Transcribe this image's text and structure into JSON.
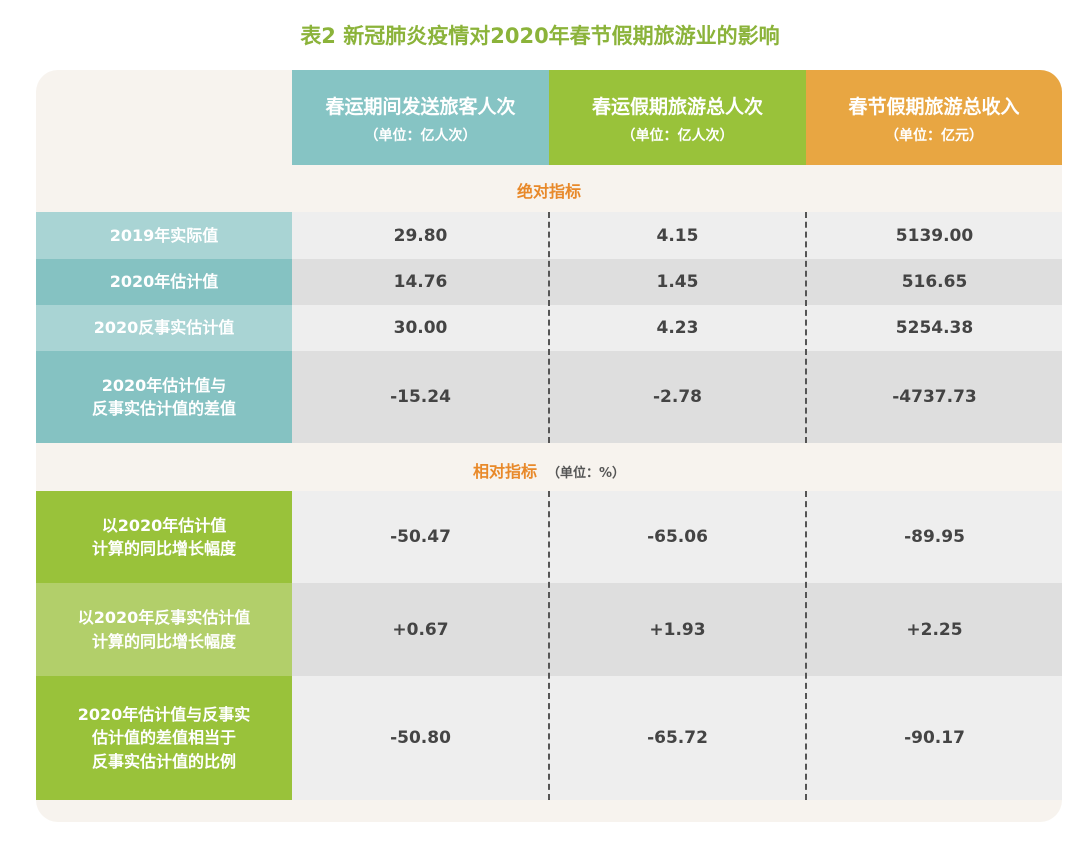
{
  "title": "表2  新冠肺炎疫情对2020年春节假期旅游业的影响",
  "columns": [
    {
      "name": "春运期间发送旅客人次",
      "unit": "（单位：亿人次）",
      "color": "#86c4c4"
    },
    {
      "name": "春运假期旅游总人次",
      "unit": "（单位：亿人次）",
      "color": "#99c23a"
    },
    {
      "name": "春节假期旅游总收入",
      "unit": "（单位：亿元）",
      "color": "#e8a642"
    }
  ],
  "sections": {
    "absolute": {
      "title": "绝对指标"
    },
    "relative": {
      "title": "相对指标",
      "unit": "（单位：%）"
    }
  },
  "rows": [
    {
      "label": "2019年实际值",
      "values": [
        "29.80",
        "4.15",
        "5139.00"
      ]
    },
    {
      "label": "2020年估计值",
      "values": [
        "14.76",
        "1.45",
        "516.65"
      ]
    },
    {
      "label": "2020反事实估计值",
      "values": [
        "30.00",
        "4.23",
        "5254.38"
      ]
    },
    {
      "label": "2020年估计值与\n反事实估计值的差值",
      "values": [
        "-15.24",
        "-2.78",
        "-4737.73"
      ]
    },
    {
      "label": "以2020年估计值\n计算的同比增长幅度",
      "values": [
        "-50.47",
        "-65.06",
        "-89.95"
      ]
    },
    {
      "label": "以2020年反事实估计值\n计算的同比增长幅度",
      "values": [
        "+0.67",
        "+1.93",
        "+2.25"
      ]
    },
    {
      "label": "2020年估计值与反事实\n估计值的差值相当于\n反事实估计值的比例",
      "values": [
        "-50.80",
        "-65.72",
        "-90.17"
      ]
    }
  ]
}
